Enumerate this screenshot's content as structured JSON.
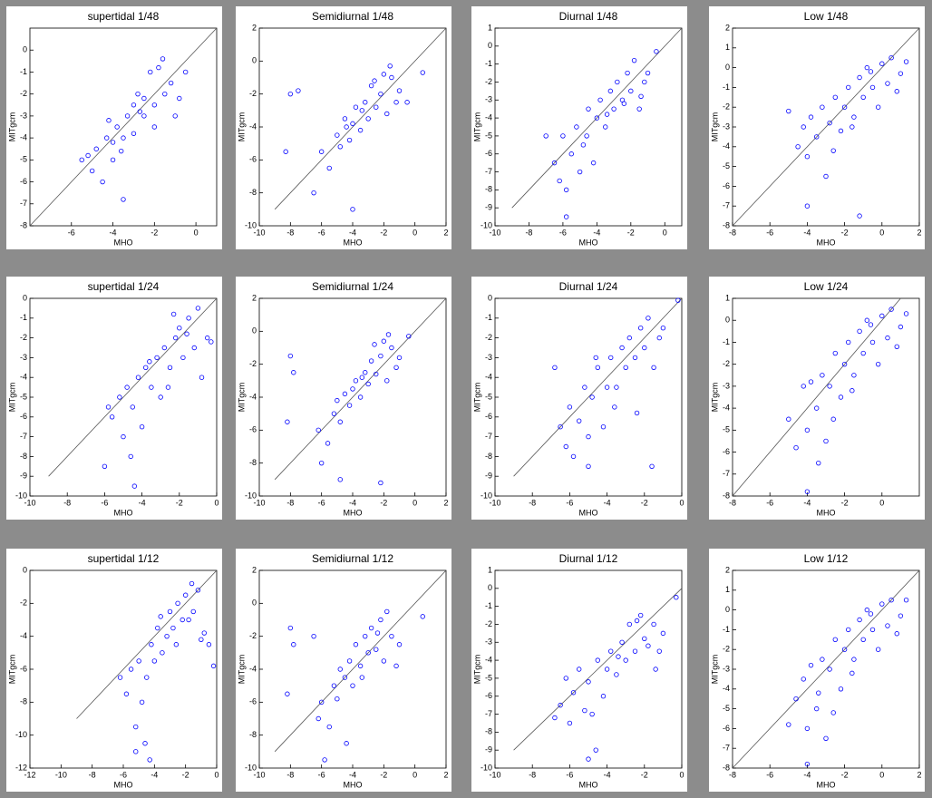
{
  "chart_data": [
    {
      "type": "scatter",
      "title": "supertidal 1/48",
      "x_label": "MHO",
      "y_label": "MITgcm",
      "color": "#0000ff",
      "xlim": [
        -8,
        1
      ],
      "ylim": [
        -8,
        1
      ],
      "xticks": [
        -6,
        -4,
        -2,
        0
      ],
      "yticks": [
        -8,
        -7,
        -6,
        -5,
        -4,
        -3,
        -2,
        -1,
        0
      ],
      "reference_line": {
        "x": [
          -8,
          1
        ],
        "y": [
          -8,
          1
        ]
      },
      "x": [
        -5.5,
        -5,
        -4.8,
        -4.5,
        -4.3,
        -4,
        -4,
        -3.8,
        -3.5,
        -3.3,
        -3,
        -3,
        -2.8,
        -2.5,
        -2.5,
        -2.2,
        -2,
        -2,
        -1.8,
        -1.5,
        -1.2,
        -1,
        -0.8,
        -0.5,
        -3.5,
        -5.2,
        -4.2,
        -3.6,
        -2.7,
        -1.6
      ],
      "y": [
        -5,
        -5.5,
        -4.5,
        -6,
        -4,
        -4.2,
        -5,
        -3.5,
        -4,
        -3,
        -2.5,
        -3.8,
        -2,
        -3,
        -2.2,
        -1,
        -2.5,
        -3.5,
        -0.8,
        -2,
        -1.5,
        -3,
        -2.2,
        -1,
        -6.8,
        -4.8,
        -3.2,
        -4.6,
        -2.8,
        -0.4
      ]
    },
    {
      "type": "scatter",
      "title": "Semidiurnal 1/48",
      "x_label": "MHO",
      "y_label": "MITgcm",
      "color": "#0000ff",
      "xlim": [
        -10,
        2
      ],
      "ylim": [
        -10,
        2
      ],
      "xticks": [
        -10,
        -8,
        -6,
        -4,
        -2,
        0,
        2
      ],
      "yticks": [
        -10,
        -8,
        -6,
        -4,
        -2,
        0,
        2
      ],
      "reference_line": {
        "x": [
          -9,
          2
        ],
        "y": [
          -9,
          2
        ]
      },
      "x": [
        -8.3,
        -8,
        -7.5,
        -6,
        -5.5,
        -5,
        -4.8,
        -4.5,
        -4.2,
        -4,
        -3.8,
        -3.5,
        -3.2,
        -3,
        -2.8,
        -2.5,
        -2.2,
        -2,
        -1.8,
        -1.5,
        -1.2,
        -1,
        -0.5,
        0.5,
        -4,
        -6.5,
        -3.4,
        -2.6,
        -1.6,
        -4.4
      ],
      "y": [
        -5.5,
        -2,
        -1.8,
        -5.5,
        -6.5,
        -4.5,
        -5.2,
        -3.5,
        -4.8,
        -3.8,
        -2.8,
        -4.2,
        -2.5,
        -3.5,
        -1.5,
        -2.8,
        -2,
        -0.8,
        -3.2,
        -1,
        -2.5,
        -1.8,
        -2.5,
        -0.7,
        -9,
        -8,
        -3,
        -1.2,
        -0.3,
        -4
      ]
    },
    {
      "type": "scatter",
      "title": "Diurnal 1/48",
      "x_label": "MHO",
      "y_label": "MITgcm",
      "color": "#0000ff",
      "xlim": [
        -10,
        1
      ],
      "ylim": [
        -10,
        1
      ],
      "xticks": [
        -10,
        -8,
        -6,
        -4,
        -2,
        0
      ],
      "yticks": [
        -10,
        -9,
        -8,
        -7,
        -6,
        -5,
        -4,
        -3,
        -2,
        -1,
        0,
        1
      ],
      "reference_line": {
        "x": [
          -9,
          1
        ],
        "y": [
          -9,
          1
        ]
      },
      "x": [
        -7,
        -6.5,
        -6.2,
        -6,
        -5.8,
        -5.5,
        -5.2,
        -5,
        -4.8,
        -4.5,
        -4.2,
        -4,
        -3.8,
        -3.5,
        -3.2,
        -3,
        -2.8,
        -2.5,
        -2.2,
        -2,
        -1.8,
        -1.5,
        -1.2,
        -1,
        -0.5,
        -5.8,
        -4.6,
        -3.4,
        -2.4,
        -1.4
      ],
      "y": [
        -5,
        -6.5,
        -7.5,
        -5,
        -8,
        -6,
        -4.5,
        -7,
        -5.5,
        -3.5,
        -6.5,
        -4,
        -3,
        -4.5,
        -2.5,
        -3.5,
        -2,
        -3,
        -1.5,
        -2.5,
        -0.8,
        -3.5,
        -2,
        -1.5,
        -0.3,
        -9.5,
        -5,
        -3.8,
        -3.2,
        -2.8
      ]
    },
    {
      "type": "scatter",
      "title": "Low 1/48",
      "x_label": "MHO",
      "y_label": "MITgcm",
      "color": "#0000ff",
      "xlim": [
        -8,
        2
      ],
      "ylim": [
        -8,
        2
      ],
      "xticks": [
        -8,
        -6,
        -4,
        -2,
        0,
        2
      ],
      "yticks": [
        -8,
        -7,
        -6,
        -5,
        -4,
        -3,
        -2,
        -1,
        0,
        1,
        2
      ],
      "reference_line": {
        "x": [
          -8,
          2
        ],
        "y": [
          -8,
          2
        ]
      },
      "x": [
        -5,
        -4.5,
        -4.2,
        -4,
        -3.8,
        -3.5,
        -3.2,
        -3,
        -2.8,
        -2.5,
        -2.2,
        -2,
        -1.8,
        -1.5,
        -1.2,
        -1,
        -0.8,
        -0.5,
        -0.2,
        0,
        0.3,
        0.5,
        1,
        1.3,
        -4,
        -1.2,
        -2.6,
        -1.6,
        -0.6,
        0.8
      ],
      "y": [
        -2.2,
        -4,
        -3,
        -4.5,
        -2.5,
        -3.5,
        -2,
        -5.5,
        -2.8,
        -1.5,
        -3.2,
        -2,
        -1,
        -2.5,
        -0.5,
        -1.5,
        0,
        -1,
        -2,
        0.2,
        -0.8,
        0.5,
        -0.3,
        0.3,
        -7,
        -7.5,
        -4.2,
        -3,
        -0.2,
        -1.2
      ]
    },
    {
      "type": "scatter",
      "title": "supertidal 1/24",
      "x_label": "MHO",
      "y_label": "MITgcm",
      "color": "#0000ff",
      "xlim": [
        -10,
        0
      ],
      "ylim": [
        -10,
        0
      ],
      "xticks": [
        -10,
        -8,
        -6,
        -4,
        -2,
        0
      ],
      "yticks": [
        -10,
        -9,
        -8,
        -7,
        -6,
        -5,
        -4,
        -3,
        -2,
        -1,
        0
      ],
      "reference_line": {
        "x": [
          -9,
          0
        ],
        "y": [
          -9,
          0
        ]
      },
      "x": [
        -6,
        -5.6,
        -5.2,
        -5,
        -4.8,
        -4.5,
        -4.2,
        -4,
        -3.8,
        -3.5,
        -3.2,
        -3,
        -2.8,
        -2.5,
        -2.2,
        -2,
        -1.8,
        -1.5,
        -1.2,
        -1,
        -0.8,
        -0.5,
        -5.8,
        -4.4,
        -3.6,
        -2.6,
        -1.6,
        -0.3,
        -4.6,
        -2.3
      ],
      "y": [
        -8.5,
        -6,
        -5,
        -7,
        -4.5,
        -5.5,
        -4,
        -6.5,
        -3.5,
        -4.5,
        -3,
        -5,
        -2.5,
        -3.5,
        -2,
        -1.5,
        -3,
        -1,
        -2.5,
        -0.5,
        -4,
        -2,
        -5.5,
        -9.5,
        -3.2,
        -4.5,
        -1.8,
        -2.2,
        -8,
        -0.8
      ]
    },
    {
      "type": "scatter",
      "title": "Semidiurnal 1/24",
      "x_label": "MHO",
      "y_label": "MITgcm",
      "color": "#0000ff",
      "xlim": [
        -10,
        2
      ],
      "ylim": [
        -10,
        2
      ],
      "xticks": [
        -10,
        -8,
        -6,
        -4,
        -2,
        0,
        2
      ],
      "yticks": [
        -10,
        -8,
        -6,
        -4,
        -2,
        0,
        2
      ],
      "reference_line": {
        "x": [
          -9,
          2
        ],
        "y": [
          -9,
          2
        ]
      },
      "x": [
        -8.2,
        -8,
        -7.8,
        -6.2,
        -5.6,
        -5.2,
        -4.8,
        -4.5,
        -4.2,
        -4,
        -3.8,
        -3.5,
        -3.2,
        -3,
        -2.8,
        -2.5,
        -2.2,
        -2,
        -1.8,
        -1.5,
        -1.2,
        -1,
        -0.4,
        -4.8,
        -6,
        -3.4,
        -2.6,
        -1.7,
        -5,
        -2.2
      ],
      "y": [
        -5.5,
        -1.5,
        -2.5,
        -6,
        -6.8,
        -5,
        -5.5,
        -3.8,
        -4.5,
        -3.5,
        -3,
        -4,
        -2.5,
        -3.2,
        -1.8,
        -2.6,
        -1.5,
        -0.6,
        -3,
        -1,
        -2.2,
        -1.6,
        -0.3,
        -9,
        -8,
        -2.8,
        -0.8,
        -0.2,
        -4.2,
        -9.2
      ]
    },
    {
      "type": "scatter",
      "title": "Diurnal 1/24",
      "x_label": "MHO",
      "y_label": "MITgcm",
      "color": "#0000ff",
      "xlim": [
        -10,
        0
      ],
      "ylim": [
        -10,
        0
      ],
      "xticks": [
        -10,
        -8,
        -6,
        -4,
        -2,
        0
      ],
      "yticks": [
        -10,
        -9,
        -8,
        -7,
        -6,
        -5,
        -4,
        -3,
        -2,
        -1,
        0
      ],
      "reference_line": {
        "x": [
          -9,
          0
        ],
        "y": [
          -9,
          0
        ]
      },
      "x": [
        -6.8,
        -6.5,
        -6.2,
        -6,
        -5.8,
        -5.5,
        -5.2,
        -5,
        -4.8,
        -4.5,
        -4.2,
        -4,
        -3.8,
        -3.5,
        -3.2,
        -3,
        -2.8,
        -2.5,
        -2.2,
        -2,
        -1.8,
        -1.5,
        -1.2,
        -1,
        -0.2,
        -5,
        -3.6,
        -2.4,
        -4.6,
        -1.6
      ],
      "y": [
        -3.5,
        -6.5,
        -7.5,
        -5.5,
        -8,
        -6.2,
        -4.5,
        -7,
        -5,
        -3.5,
        -6.5,
        -4.5,
        -3,
        -4.5,
        -2.5,
        -3.5,
        -2,
        -3,
        -1.5,
        -2.5,
        -1,
        -3.5,
        -2,
        -1.5,
        -0.1,
        -8.5,
        -5.5,
        -5.8,
        -3,
        -8.5
      ]
    },
    {
      "type": "scatter",
      "title": "Low 1/24",
      "x_label": "MHO",
      "y_label": "MITgcm",
      "color": "#0000ff",
      "xlim": [
        -8,
        2
      ],
      "ylim": [
        -8,
        1
      ],
      "xticks": [
        -8,
        -6,
        -4,
        -2,
        0
      ],
      "yticks": [
        -8,
        -7,
        -6,
        -5,
        -4,
        -3,
        -2,
        -1,
        0,
        1
      ],
      "reference_line": {
        "x": [
          -8,
          1
        ],
        "y": [
          -8,
          1
        ]
      },
      "x": [
        -5,
        -4.6,
        -4.2,
        -4,
        -3.8,
        -3.5,
        -3.2,
        -3,
        -2.8,
        -2.5,
        -2.2,
        -2,
        -1.8,
        -1.5,
        -1.2,
        -1,
        -0.8,
        -0.5,
        -0.2,
        0,
        0.3,
        0.5,
        1,
        1.3,
        -4,
        -2.6,
        -1.6,
        -0.6,
        0.8,
        -3.4
      ],
      "y": [
        -4.5,
        -5.8,
        -3,
        -5,
        -2.8,
        -4,
        -2.5,
        -5.5,
        -3,
        -1.5,
        -3.5,
        -2,
        -1,
        -2.5,
        -0.5,
        -1.5,
        0,
        -1,
        -2,
        0.2,
        -0.8,
        0.5,
        -0.3,
        0.3,
        -7.8,
        -4.5,
        -3.2,
        -0.2,
        -1.2,
        -6.5
      ]
    },
    {
      "type": "scatter",
      "title": "supertidal 1/12",
      "x_label": "MHO",
      "y_label": "MITgcm",
      "color": "#0000ff",
      "xlim": [
        -12,
        0
      ],
      "ylim": [
        -12,
        0
      ],
      "xticks": [
        -12,
        -10,
        -8,
        -6,
        -4,
        -2,
        0
      ],
      "yticks": [
        -12,
        -10,
        -8,
        -6,
        -4,
        -2,
        0
      ],
      "reference_line": {
        "x": [
          -9,
          0
        ],
        "y": [
          -9,
          0
        ]
      },
      "x": [
        -6.2,
        -5.8,
        -5.5,
        -5.2,
        -5,
        -4.8,
        -4.5,
        -4.2,
        -4,
        -3.8,
        -3.5,
        -3.2,
        -3,
        -2.8,
        -2.5,
        -2.2,
        -2,
        -1.8,
        -1.5,
        -1.2,
        -1,
        -0.8,
        -0.5,
        -0.2,
        -5.2,
        -4.6,
        -3.6,
        -2.6,
        -1.6,
        -4.3
      ],
      "y": [
        -6.5,
        -7.5,
        -6,
        -9.5,
        -5.5,
        -8,
        -6.5,
        -4.5,
        -5.5,
        -3.5,
        -5,
        -4,
        -2.5,
        -3.5,
        -2,
        -3,
        -1.5,
        -3,
        -2.5,
        -1.2,
        -4.2,
        -3.8,
        -4.5,
        -5.8,
        -11,
        -10.5,
        -2.8,
        -4.5,
        -0.8,
        -11.5
      ]
    },
    {
      "type": "scatter",
      "title": "Semidiurnal 1/12",
      "x_label": "MHO",
      "y_label": "MITgcm",
      "color": "#0000ff",
      "xlim": [
        -10,
        2
      ],
      "ylim": [
        -10,
        2
      ],
      "xticks": [
        -10,
        -8,
        -6,
        -4,
        -2,
        0,
        2
      ],
      "yticks": [
        -10,
        -8,
        -6,
        -4,
        -2,
        0,
        2
      ],
      "reference_line": {
        "x": [
          -9,
          2
        ],
        "y": [
          -9,
          2
        ]
      },
      "x": [
        -8.2,
        -8,
        -7.8,
        -6.5,
        -6,
        -5.5,
        -5.2,
        -5,
        -4.8,
        -4.5,
        -4.2,
        -4,
        -3.8,
        -3.5,
        -3.2,
        -3,
        -2.8,
        -2.5,
        -2.2,
        -2,
        -1.8,
        -1.5,
        -1.2,
        -1,
        0.5,
        -5.8,
        -4.4,
        -3.4,
        -2.4,
        -6.2
      ],
      "y": [
        -5.5,
        -1.5,
        -2.5,
        -2,
        -6,
        -7.5,
        -5,
        -5.8,
        -4,
        -4.5,
        -3.5,
        -5,
        -2.5,
        -3.8,
        -2,
        -3,
        -1.5,
        -2.8,
        -1,
        -3.5,
        -0.5,
        -2,
        -3.8,
        -2.5,
        -0.8,
        -9.5,
        -8.5,
        -4.5,
        -1.8,
        -7
      ]
    },
    {
      "type": "scatter",
      "title": "Diurnal 1/12",
      "x_label": "MHO",
      "y_label": "MITgcm",
      "color": "#0000ff",
      "xlim": [
        -10,
        0
      ],
      "ylim": [
        -10,
        1
      ],
      "xticks": [
        -10,
        -8,
        -6,
        -4,
        -2,
        0
      ],
      "yticks": [
        -10,
        -9,
        -8,
        -7,
        -6,
        -5,
        -4,
        -3,
        -2,
        -1,
        0,
        1
      ],
      "reference_line": {
        "x": [
          -9,
          0
        ],
        "y": [
          -9,
          0
        ]
      },
      "x": [
        -6.8,
        -6.5,
        -6.2,
        -6,
        -5.8,
        -5.5,
        -5.2,
        -5,
        -4.8,
        -4.5,
        -4.2,
        -4,
        -3.8,
        -3.5,
        -3.2,
        -3,
        -2.8,
        -2.5,
        -2.2,
        -2,
        -1.8,
        -1.5,
        -1.2,
        -1,
        -0.3,
        -5,
        -4.6,
        -3.4,
        -2.4,
        -1.4
      ],
      "y": [
        -7.2,
        -6.5,
        -5,
        -7.5,
        -5.8,
        -4.5,
        -6.8,
        -5.2,
        -7,
        -4,
        -6,
        -4.5,
        -3.5,
        -4.8,
        -3,
        -4,
        -2,
        -3.5,
        -1.5,
        -2.8,
        -3.2,
        -2,
        -3.5,
        -2.5,
        -0.5,
        -9.5,
        -9,
        -3.8,
        -1.8,
        -4.5
      ]
    },
    {
      "type": "scatter",
      "title": "Low 1/12",
      "x_label": "MHO",
      "y_label": "MITgcm",
      "color": "#0000ff",
      "xlim": [
        -8,
        2
      ],
      "ylim": [
        -8,
        2
      ],
      "xticks": [
        -8,
        -6,
        -4,
        -2,
        0,
        2
      ],
      "yticks": [
        -8,
        -7,
        -6,
        -5,
        -4,
        -3,
        -2,
        -1,
        0,
        1,
        2
      ],
      "reference_line": {
        "x": [
          -8,
          2
        ],
        "y": [
          -8,
          2
        ]
      },
      "x": [
        -5,
        -4.6,
        -4.2,
        -4,
        -3.8,
        -3.5,
        -3.2,
        -3,
        -2.8,
        -2.5,
        -2.2,
        -2,
        -1.8,
        -1.5,
        -1.2,
        -1,
        -0.8,
        -0.5,
        -0.2,
        0,
        0.3,
        0.5,
        1,
        1.3,
        -4,
        -2.6,
        -1.6,
        -0.6,
        0.8,
        -3.4
      ],
      "y": [
        -5.8,
        -4.5,
        -3.5,
        -6,
        -2.8,
        -5,
        -2.5,
        -6.5,
        -3,
        -1.5,
        -4,
        -2,
        -1,
        -2.5,
        -0.5,
        -1.5,
        0,
        -1,
        -2,
        0.3,
        -0.8,
        0.5,
        -0.3,
        0.5,
        -7.8,
        -5.2,
        -3.2,
        -0.2,
        -1.2,
        -4.2
      ]
    }
  ]
}
